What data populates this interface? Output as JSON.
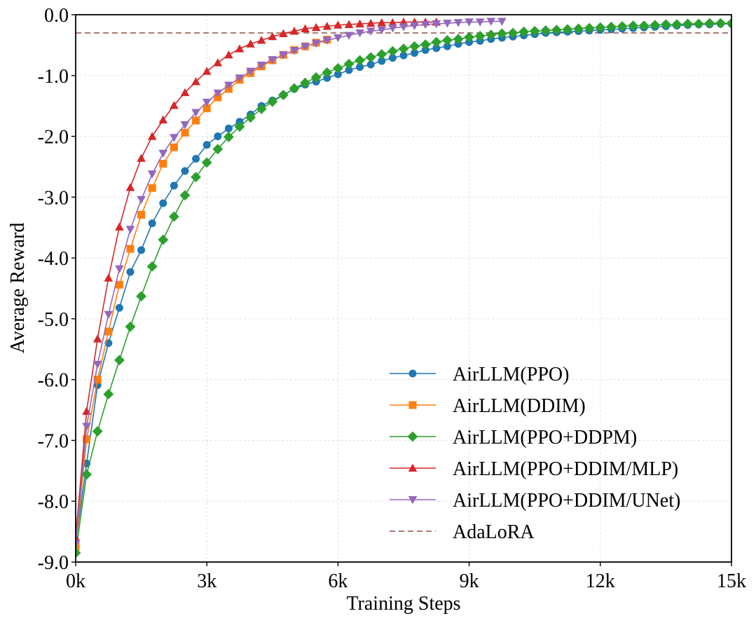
{
  "chart_data": {
    "type": "line",
    "title": "",
    "xlabel": "Training Steps",
    "ylabel": "Average Reward",
    "xlim": [
      0,
      15000
    ],
    "ylim": [
      -9,
      0
    ],
    "xticks": [
      0,
      3000,
      6000,
      9000,
      12000,
      15000
    ],
    "xtick_labels": [
      "0k",
      "3k",
      "6k",
      "9k",
      "12k",
      "15k"
    ],
    "yticks": [
      0,
      -1,
      -2,
      -3,
      -4,
      -5,
      -6,
      -7,
      -8,
      -9
    ],
    "ytick_labels": [
      "0.0",
      "-1.0",
      "-2.0",
      "-3.0",
      "-4.0",
      "-5.0",
      "-6.0",
      "-7.0",
      "-8.0",
      "-9.0"
    ],
    "grid": true,
    "legend_position": "lower-right",
    "series": [
      {
        "name": "AirLLM(PPO)",
        "color": "#1f77b4",
        "marker": "circle",
        "x_start": 0,
        "x_end": 15000,
        "x_step": 250,
        "values": [
          -8.7,
          -7.38,
          -6.09,
          -5.4,
          -4.82,
          -4.23,
          -3.87,
          -3.43,
          -3.1,
          -2.81,
          -2.57,
          -2.37,
          -2.14,
          -2.0,
          -1.87,
          -1.76,
          -1.64,
          -1.5,
          -1.41,
          -1.32,
          -1.22,
          -1.15,
          -1.1,
          -1.04,
          -0.98,
          -0.91,
          -0.86,
          -0.82,
          -0.76,
          -0.71,
          -0.67,
          -0.63,
          -0.58,
          -0.55,
          -0.52,
          -0.48,
          -0.45,
          -0.43,
          -0.4,
          -0.38,
          -0.36,
          -0.34,
          -0.32,
          -0.3,
          -0.29,
          -0.28,
          -0.27,
          -0.26,
          -0.25,
          -0.24,
          -0.23,
          -0.22,
          -0.21,
          -0.2,
          -0.19,
          -0.18,
          -0.17,
          -0.16,
          -0.16,
          -0.15,
          -0.15
        ]
      },
      {
        "name": "AirLLM(DDIM)",
        "color": "#ff7f0e",
        "marker": "square",
        "x_start": 0,
        "x_end": 5750,
        "x_step": 250,
        "values": [
          -8.75,
          -6.98,
          -6.0,
          -5.21,
          -4.44,
          -3.85,
          -3.29,
          -2.85,
          -2.45,
          -2.18,
          -1.94,
          -1.74,
          -1.54,
          -1.36,
          -1.22,
          -1.07,
          -0.96,
          -0.85,
          -0.75,
          -0.66,
          -0.58,
          -0.52,
          -0.46,
          -0.41
        ]
      },
      {
        "name": "AirLLM(PPO+DDPM)",
        "color": "#2ca02c",
        "marker": "diamond",
        "x_start": 0,
        "x_end": 15000,
        "x_step": 250,
        "values": [
          -8.85,
          -7.56,
          -6.85,
          -6.24,
          -5.68,
          -5.13,
          -4.63,
          -4.14,
          -3.7,
          -3.32,
          -2.97,
          -2.67,
          -2.43,
          -2.21,
          -2.01,
          -1.84,
          -1.69,
          -1.55,
          -1.43,
          -1.32,
          -1.21,
          -1.12,
          -1.03,
          -0.95,
          -0.88,
          -0.81,
          -0.75,
          -0.7,
          -0.65,
          -0.6,
          -0.56,
          -0.52,
          -0.49,
          -0.45,
          -0.42,
          -0.4,
          -0.37,
          -0.35,
          -0.33,
          -0.31,
          -0.3,
          -0.28,
          -0.27,
          -0.26,
          -0.25,
          -0.24,
          -0.23,
          -0.22,
          -0.21,
          -0.2,
          -0.19,
          -0.18,
          -0.18,
          -0.17,
          -0.16,
          -0.16,
          -0.15,
          -0.15,
          -0.14,
          -0.14,
          -0.14
        ]
      },
      {
        "name": "AirLLM(PPO+DDIM/MLP)",
        "color": "#d62728",
        "marker": "triangle-up",
        "x_start": 0,
        "x_end": 8250,
        "x_step": 250,
        "values": [
          -8.6,
          -6.52,
          -5.33,
          -4.33,
          -3.49,
          -2.84,
          -2.36,
          -2.0,
          -1.73,
          -1.49,
          -1.28,
          -1.1,
          -0.93,
          -0.79,
          -0.66,
          -0.56,
          -0.48,
          -0.42,
          -0.36,
          -0.31,
          -0.27,
          -0.23,
          -0.21,
          -0.19,
          -0.17,
          -0.16,
          -0.15,
          -0.14,
          -0.13,
          -0.13,
          -0.12,
          -0.12,
          -0.12,
          -0.12
        ]
      },
      {
        "name": "AirLLM(PPO+DDIM/UNet)",
        "color": "#9467bd",
        "marker": "triangle-down",
        "x_start": 0,
        "x_end": 9750,
        "x_step": 250,
        "values": [
          -8.7,
          -6.77,
          -5.75,
          -4.93,
          -4.18,
          -3.53,
          -3.04,
          -2.62,
          -2.28,
          -2.02,
          -1.81,
          -1.61,
          -1.44,
          -1.29,
          -1.16,
          -1.04,
          -0.93,
          -0.83,
          -0.74,
          -0.66,
          -0.59,
          -0.52,
          -0.47,
          -0.42,
          -0.38,
          -0.34,
          -0.3,
          -0.27,
          -0.25,
          -0.22,
          -0.2,
          -0.18,
          -0.16,
          -0.15,
          -0.14,
          -0.13,
          -0.12,
          -0.12,
          -0.11,
          -0.11
        ]
      },
      {
        "name": "AdaLoRA",
        "color": "#a97c73",
        "marker": "none",
        "dashed": true,
        "constant": -0.3
      }
    ]
  }
}
